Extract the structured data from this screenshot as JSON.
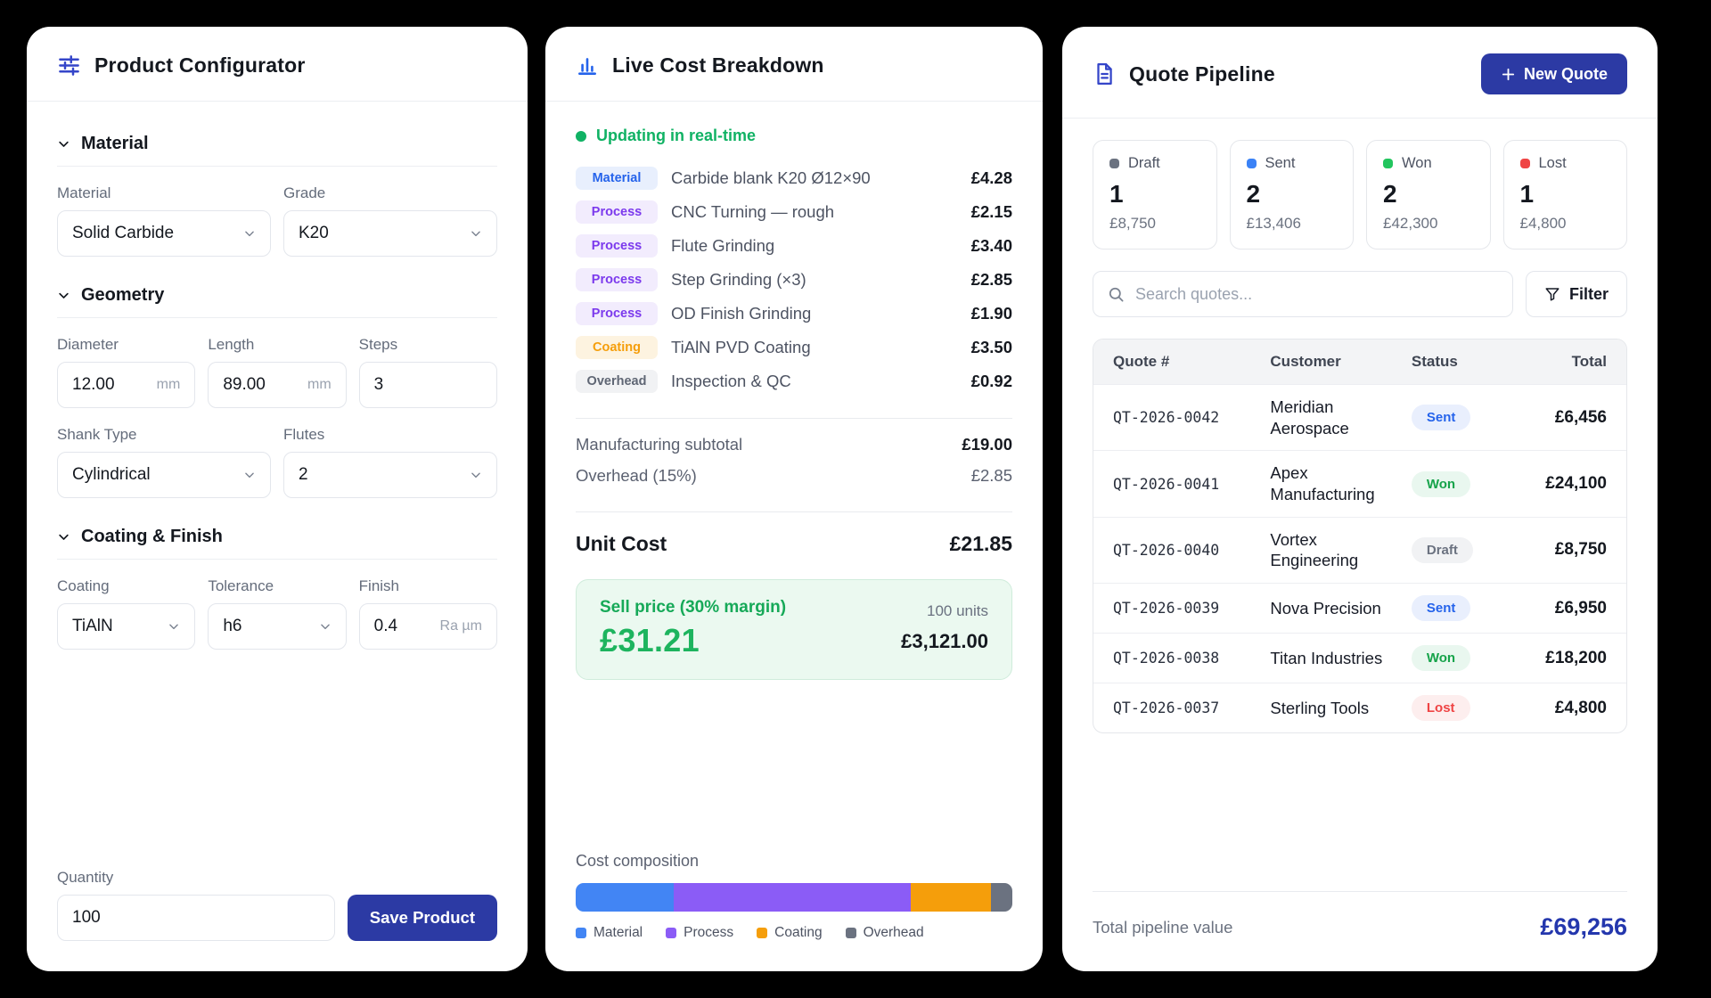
{
  "config": {
    "title": "Product Configurator",
    "material": {
      "title": "Material",
      "fields": [
        {
          "label": "Material",
          "value": "Solid Carbide"
        },
        {
          "label": "Grade",
          "value": "K20"
        }
      ]
    },
    "geometry": {
      "title": "Geometry",
      "dims": [
        {
          "label": "Diameter",
          "value": "12.00",
          "suffix": "mm"
        },
        {
          "label": "Length",
          "value": "89.00",
          "suffix": "mm"
        },
        {
          "label": "Steps",
          "value": "3",
          "suffix": ""
        }
      ],
      "row2": [
        {
          "label": "Shank Type",
          "value": "Cylindrical"
        },
        {
          "label": "Flutes",
          "value": "2"
        }
      ]
    },
    "coating": {
      "title": "Coating & Finish",
      "fields": [
        {
          "label": "Coating",
          "value": "TiAlN"
        },
        {
          "label": "Tolerance",
          "value": "h6"
        },
        {
          "label": "Finish",
          "value": "0.4",
          "suffix": "Ra µm"
        }
      ]
    },
    "quantity": {
      "label": "Quantity",
      "value": "100"
    },
    "save_label": "Save Product"
  },
  "cost": {
    "title": "Live Cost Breakdown",
    "status": "Updating in real-time",
    "items": [
      {
        "tag": "Material",
        "name": "Carbide blank K20 Ø12×90",
        "price": "£4.28"
      },
      {
        "tag": "Process",
        "name": "CNC Turning — rough",
        "price": "£2.15"
      },
      {
        "tag": "Process",
        "name": "Flute Grinding",
        "price": "£3.40"
      },
      {
        "tag": "Process",
        "name": "Step Grinding (×3)",
        "price": "£2.85"
      },
      {
        "tag": "Process",
        "name": "OD Finish Grinding",
        "price": "£1.90"
      },
      {
        "tag": "Coating",
        "name": "TiAlN PVD Coating",
        "price": "£3.50"
      },
      {
        "tag": "Overhead",
        "name": "Inspection & QC",
        "price": "£0.92"
      }
    ],
    "subtotal_label": "Manufacturing subtotal",
    "subtotal": "£19.00",
    "overhead_label": "Overhead (15%)",
    "overhead": "£2.85",
    "unit_cost_label": "Unit Cost",
    "unit_cost": "£21.85",
    "sell": {
      "label": "Sell price (30% margin)",
      "price": "£31.21",
      "units": "100 units",
      "total": "£3,121.00"
    },
    "composition_label": "Cost composition"
  },
  "chart_data": {
    "type": "bar",
    "title": "Cost composition",
    "stacked": true,
    "categories": [
      "Material",
      "Process",
      "Coating",
      "Overhead"
    ],
    "values": [
      4.28,
      10.3,
      3.5,
      0.92
    ],
    "percents": [
      22.5,
      54.2,
      18.4,
      4.9
    ],
    "colors": [
      "#4285f4",
      "#8b5cf6",
      "#f59e0b",
      "#6b7280"
    ],
    "unit": "GBP",
    "legend_position": "bottom"
  },
  "pipeline": {
    "title": "Quote Pipeline",
    "new_quote_label": "New Quote",
    "cards": [
      {
        "label": "Draft",
        "count": "1",
        "amount": "£8,750"
      },
      {
        "label": "Sent",
        "count": "2",
        "amount": "£13,406"
      },
      {
        "label": "Won",
        "count": "2",
        "amount": "£42,300"
      },
      {
        "label": "Lost",
        "count": "1",
        "amount": "£4,800"
      }
    ],
    "search_placeholder": "Search quotes...",
    "filter_label": "Filter",
    "table_headers": [
      "Quote #",
      "Customer",
      "Status",
      "Total"
    ],
    "rows": [
      {
        "quote": "QT-2026-0042",
        "customer": "Meridian Aerospace",
        "status": "Sent",
        "total": "£6,456"
      },
      {
        "quote": "QT-2026-0041",
        "customer": "Apex Manufacturing",
        "status": "Won",
        "total": "£24,100"
      },
      {
        "quote": "QT-2026-0040",
        "customer": "Vortex Engineering",
        "status": "Draft",
        "total": "£8,750"
      },
      {
        "quote": "QT-2026-0039",
        "customer": "Nova Precision",
        "status": "Sent",
        "total": "£6,950"
      },
      {
        "quote": "QT-2026-0038",
        "customer": "Titan Industries",
        "status": "Won",
        "total": "£18,200"
      },
      {
        "quote": "QT-2026-0037",
        "customer": "Sterling Tools",
        "status": "Lost",
        "total": "£4,800"
      }
    ],
    "footer_label": "Total pipeline value",
    "footer_value": "£69,256"
  },
  "colors": {
    "accent_indigo": "#2c3aa4",
    "live_green": "#10b264",
    "total_blue": "#2437ad"
  }
}
